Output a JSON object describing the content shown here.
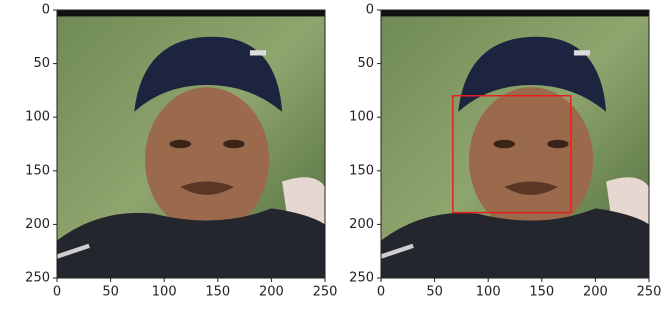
{
  "chart_data": [
    {
      "type": "image",
      "xlim": [
        0,
        250
      ],
      "ylim": [
        250,
        0
      ],
      "xticks": [
        0,
        50,
        100,
        150,
        200,
        250
      ],
      "yticks": [
        0,
        50,
        100,
        150,
        200,
        250
      ]
    },
    {
      "type": "image",
      "xlim": [
        0,
        250
      ],
      "ylim": [
        250,
        0
      ],
      "xticks": [
        0,
        50,
        100,
        150,
        200,
        250
      ],
      "yticks": [
        0,
        50,
        100,
        150,
        200,
        250
      ],
      "box": {
        "x0": 67,
        "y0": 80,
        "x1": 177,
        "y1": 189
      },
      "box_color": "#e8201c"
    }
  ]
}
